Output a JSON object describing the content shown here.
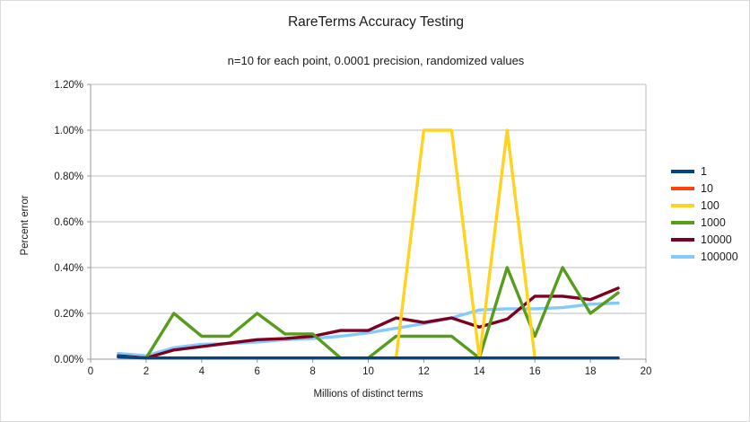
{
  "title": "RareTerms Accuracy Testing",
  "subtitle": "n=10 for each point, 0.0001 precision, randomized values",
  "chart_data": {
    "type": "line",
    "title": "RareTerms Accuracy Testing",
    "subtitle": "n=10 for each point, 0.0001 precision, randomized values",
    "xlabel": "Millions of distinct terms",
    "ylabel": "Percent error",
    "xlim": [
      0,
      20
    ],
    "ylim_percent": [
      0,
      1.2
    ],
    "x_ticks": [
      0,
      2,
      4,
      6,
      8,
      10,
      12,
      14,
      16,
      18,
      20
    ],
    "y_ticks": [
      "0.00%",
      "0.20%",
      "0.40%",
      "0.60%",
      "0.80%",
      "1.00%",
      "1.20%"
    ],
    "y_tick_values": [
      0,
      0.2,
      0.4,
      0.6,
      0.8,
      1.0,
      1.2
    ],
    "grid": "horizontal",
    "legend_position": "right",
    "draw_order": "reversed-first-series-on-top",
    "x": [
      1,
      2,
      3,
      4,
      5,
      6,
      7,
      8,
      9,
      10,
      11,
      12,
      13,
      14,
      15,
      16,
      17,
      18,
      19
    ],
    "series": [
      {
        "name": "1",
        "color": "#004586",
        "values": [
          0.01,
          0.005,
          0.005,
          0.005,
          0.005,
          0.005,
          0.005,
          0.005,
          0.005,
          0.005,
          0.005,
          0.005,
          0.005,
          0.005,
          0.005,
          0.005,
          0.005,
          0.005,
          0.005
        ]
      },
      {
        "name": "10",
        "color": "#FF420E",
        "values": [
          0.01,
          0.005,
          0.005,
          0.005,
          0.005,
          0.005,
          0.005,
          0.005,
          0.005,
          0.005,
          0.005,
          0.005,
          0.005,
          0.005,
          0.005,
          0.005,
          0.005,
          0.005,
          0.005
        ]
      },
      {
        "name": "100",
        "color": "#FFD320",
        "values": [
          0.01,
          0.005,
          0.005,
          0.005,
          0.005,
          0.005,
          0.005,
          0.005,
          0.005,
          0.005,
          0.005,
          1.0,
          1.0,
          0.005,
          1.0,
          0.005,
          0.005,
          0.005,
          0.005
        ]
      },
      {
        "name": "1000",
        "color": "#579D1C",
        "values": [
          0.01,
          0.005,
          0.2,
          0.1,
          0.1,
          0.2,
          0.11,
          0.11,
          0.005,
          0.005,
          0.1,
          0.1,
          0.1,
          0.005,
          0.4,
          0.1,
          0.4,
          0.2,
          0.29
        ]
      },
      {
        "name": "10000",
        "color": "#7E0021",
        "values": [
          0.015,
          0.005,
          0.04,
          0.055,
          0.07,
          0.085,
          0.09,
          0.1,
          0.125,
          0.125,
          0.18,
          0.16,
          0.18,
          0.14,
          0.175,
          0.275,
          0.275,
          0.26,
          0.31
        ]
      },
      {
        "name": "100000",
        "color": "#83CAFF",
        "values": [
          0.025,
          0.015,
          0.05,
          0.065,
          0.068,
          0.075,
          0.085,
          0.09,
          0.1,
          0.115,
          0.135,
          0.155,
          0.18,
          0.215,
          0.22,
          0.22,
          0.225,
          0.24,
          0.245
        ]
      }
    ]
  }
}
